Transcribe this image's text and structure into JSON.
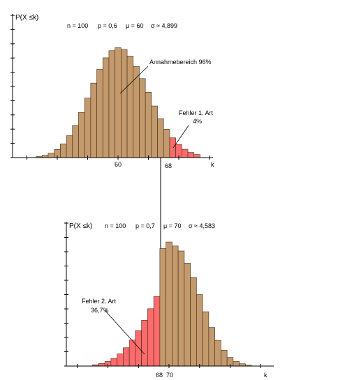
{
  "chart_data": [
    {
      "type": "bar",
      "ylabel": "P(X ≤k)",
      "xlabel": "k",
      "params": {
        "n": "n = 100",
        "p": "p = 0,6",
        "mu": "μ = 60",
        "sigma": "σ ≈ 4,899"
      },
      "x_tick_labels": [
        "60",
        "68"
      ],
      "critical_k": 68,
      "colors": {
        "accept": "#c49a6c",
        "reject": "#ff6b6b"
      },
      "x": [
        47,
        48,
        49,
        50,
        51,
        52,
        53,
        54,
        55,
        56,
        57,
        58,
        59,
        60,
        61,
        62,
        63,
        64,
        65,
        66,
        67,
        68,
        69,
        70,
        71,
        72,
        73
      ],
      "values": [
        0.0006,
        0.0013,
        0.0025,
        0.0046,
        0.0077,
        0.0123,
        0.0181,
        0.0254,
        0.0335,
        0.0419,
        0.0496,
        0.0561,
        0.0601,
        0.0618,
        0.0608,
        0.0571,
        0.0513,
        0.0444,
        0.0367,
        0.029,
        0.0219,
        0.0159,
        0.0111,
        0.0074,
        0.0047,
        0.0029,
        0.0017
      ],
      "annotations": [
        {
          "text": "Annahmebereich 96%"
        },
        {
          "text": [
            "Fehler 1. Art",
            "4%"
          ]
        }
      ]
    },
    {
      "type": "bar",
      "ylabel": "P(X ≤k)",
      "xlabel": "k",
      "params": {
        "n": "n = 100",
        "p": "p = 0,7",
        "mu": "μ = 70",
        "sigma": "σ ≈ 4,583"
      },
      "x_tick_labels": [
        "68",
        "70"
      ],
      "critical_k": 68,
      "colors": {
        "accept": "#c49a6c",
        "reject": "#ff6b6b"
      },
      "x": [
        58,
        59,
        60,
        61,
        62,
        63,
        64,
        65,
        66,
        67,
        68,
        69,
        70,
        71,
        72,
        73,
        74,
        75,
        76,
        77,
        78,
        79,
        80,
        81,
        82,
        83
      ],
      "values": [
        0.0009,
        0.0018,
        0.0032,
        0.0054,
        0.0085,
        0.0128,
        0.0182,
        0.0248,
        0.032,
        0.0401,
        0.0487,
        0.0822,
        0.0868,
        0.084,
        0.0805,
        0.072,
        0.062,
        0.05,
        0.038,
        0.027,
        0.018,
        0.011,
        0.006,
        0.0032,
        0.0016,
        0.0007
      ],
      "annotations": [
        {
          "text": [
            "Fehler 2. Art",
            "36,7%"
          ]
        }
      ]
    }
  ]
}
